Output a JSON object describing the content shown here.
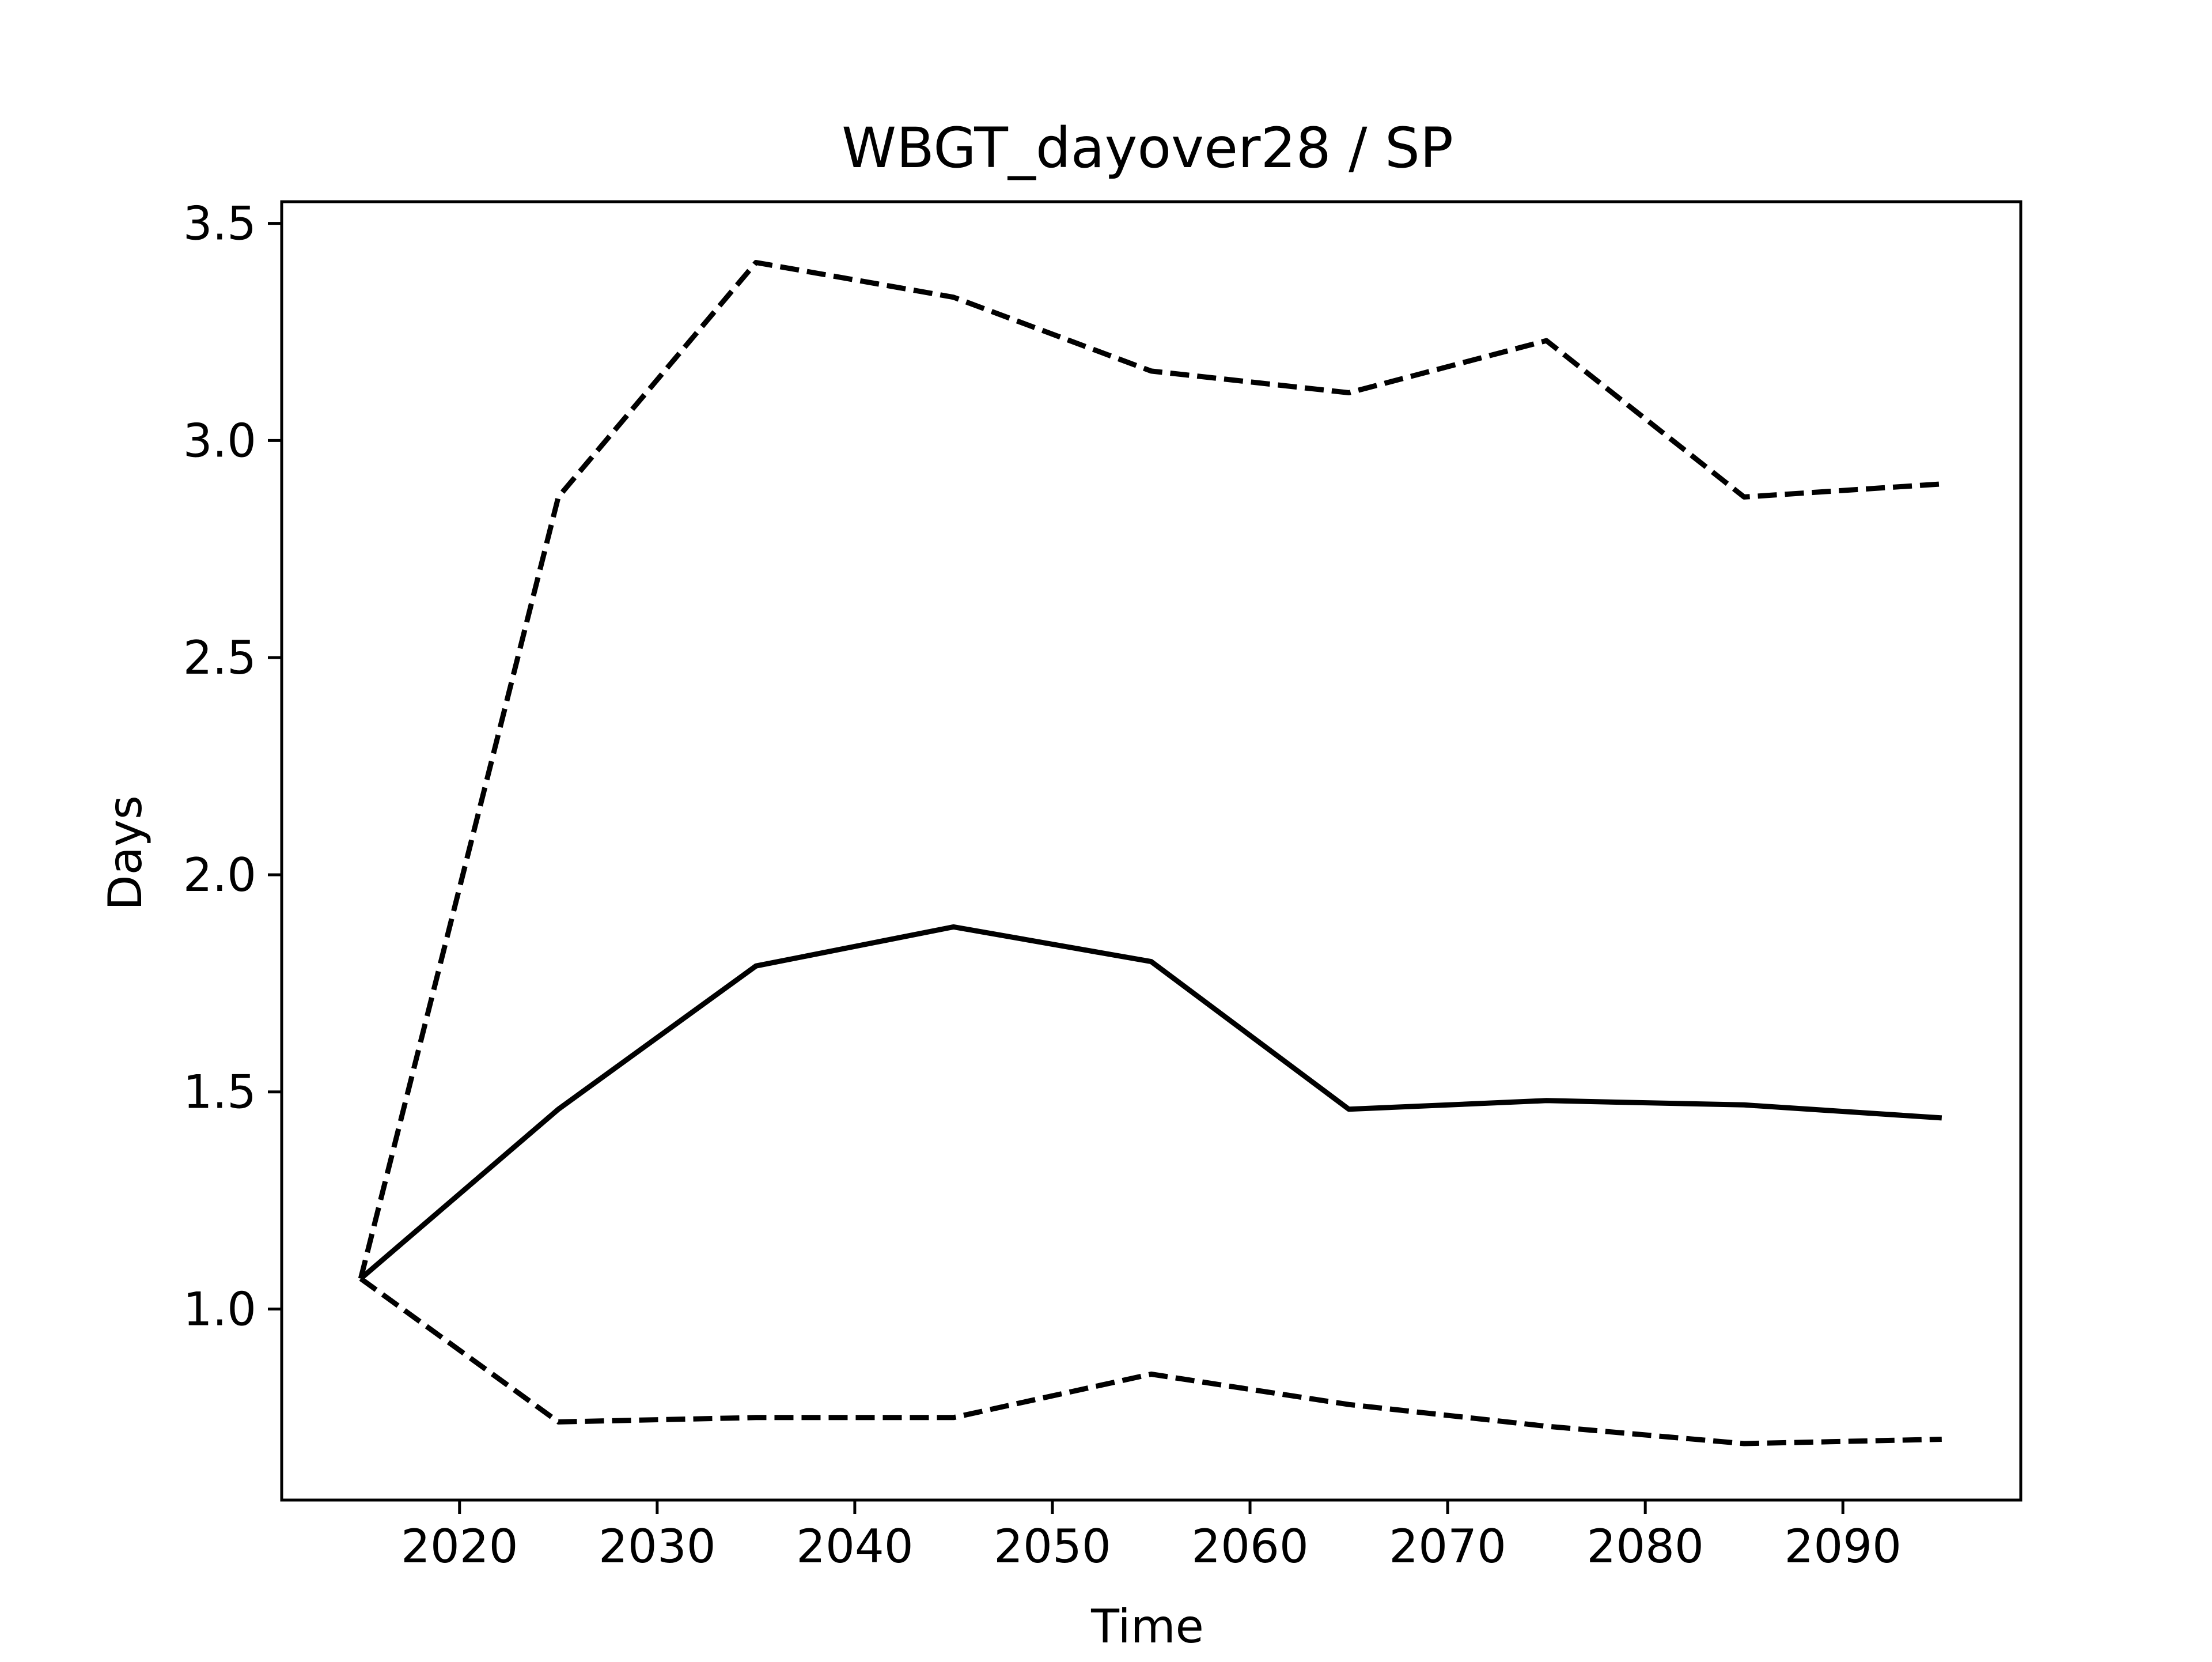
{
  "chart_data": {
    "type": "line",
    "title": "WBGT_dayover28 / SP",
    "xlabel": "Time",
    "ylabel": "Days",
    "xlim": [
      2011,
      2099
    ],
    "ylim": [
      0.56,
      3.55
    ],
    "x_ticks": [
      2020,
      2030,
      2040,
      2050,
      2060,
      2070,
      2080,
      2090
    ],
    "y_ticks": [
      1.0,
      1.5,
      2.0,
      2.5,
      3.0,
      3.5
    ],
    "grid": false,
    "legend": "none",
    "x": [
      2015,
      2025,
      2035,
      2045,
      2055,
      2065,
      2075,
      2085,
      2095
    ],
    "series": [
      {
        "style": "solid",
        "color": "#000000",
        "values": [
          1.07,
          1.46,
          1.79,
          1.88,
          1.8,
          1.46,
          1.48,
          1.47,
          1.44
        ]
      },
      {
        "style": "dashed",
        "color": "#000000",
        "values": [
          1.07,
          2.87,
          3.41,
          3.33,
          3.16,
          3.11,
          3.23,
          2.87,
          2.9
        ]
      },
      {
        "style": "dashed",
        "color": "#000000",
        "values": [
          1.07,
          0.74,
          0.75,
          0.75,
          0.85,
          0.78,
          0.73,
          0.69,
          0.7
        ]
      }
    ]
  }
}
